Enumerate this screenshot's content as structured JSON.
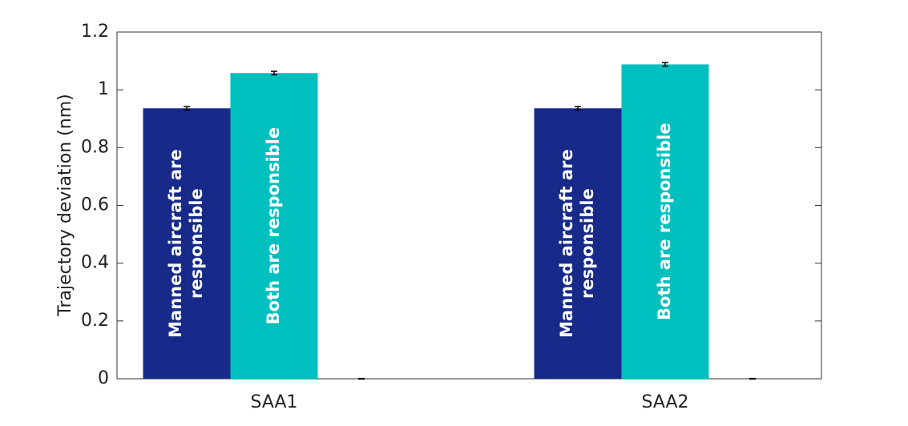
{
  "chart_data": {
    "type": "bar",
    "ylabel": "Trajectory deviation (nm)",
    "categories": [
      "SAA1",
      "SAA2"
    ],
    "series": [
      {
        "name": "Manned aircraft are responsible",
        "color": "#172a8a",
        "values": [
          0.936,
          0.936
        ],
        "errors": [
          0.006,
          0.006
        ]
      },
      {
        "name": "Both are responsible",
        "color": "#00c0bf",
        "values": [
          1.058,
          1.088
        ],
        "errors": [
          0.006,
          0.006
        ]
      },
      {
        "name": null,
        "color": "#00c0bf",
        "values": [
          0,
          0
        ],
        "errors": [
          0.001,
          0.001
        ]
      }
    ],
    "ylim": [
      0,
      1.2
    ],
    "yticks": [
      0,
      0.2,
      0.4,
      0.6,
      0.8,
      1,
      1.2
    ]
  }
}
